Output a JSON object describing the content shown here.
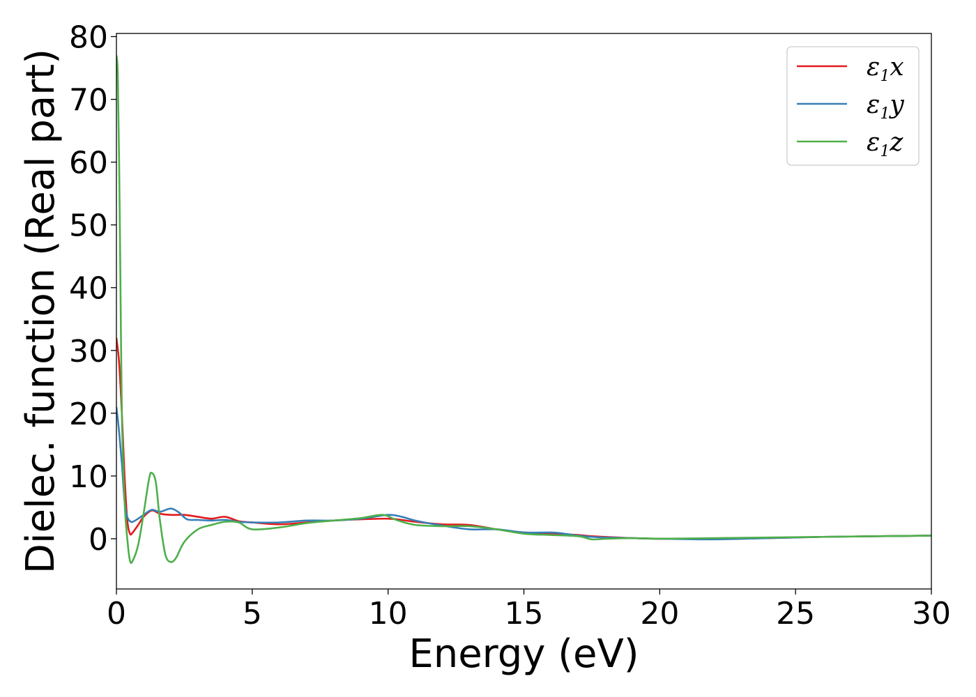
{
  "chart_data": {
    "type": "line",
    "xlabel": "Energy (eV)",
    "ylabel": "Dielec. function (Real part)",
    "xlim": [
      0,
      30
    ],
    "ylim": [
      -8,
      80.5
    ],
    "xticks": [
      "0",
      "5",
      "10",
      "15",
      "20",
      "25",
      "30"
    ],
    "yticks": [
      "0",
      "10",
      "20",
      "30",
      "40",
      "50",
      "60",
      "70",
      "80"
    ],
    "grid": false,
    "legend_position": "top-right",
    "series": [
      {
        "name": "ε1x",
        "legend": {
          "main": "ε",
          "sub": "1",
          "suffix": "x"
        },
        "color": "#e41a1c",
        "x": [
          0,
          0.1,
          0.2,
          0.3,
          0.4,
          0.5,
          0.6,
          0.8,
          1.0,
          1.3,
          1.6,
          2.0,
          2.5,
          3.0,
          3.5,
          4.0,
          4.5,
          5.0,
          6.0,
          7.0,
          8.0,
          9.0,
          10.0,
          10.5,
          11.0,
          12.0,
          13.0,
          14.0,
          15.0,
          16.0,
          17.0,
          17.5,
          18.0,
          19.0,
          20.0,
          22.0,
          24.0,
          26.0,
          28.0,
          30.0
        ],
        "y": [
          32,
          28,
          20,
          10,
          3,
          0.8,
          1.0,
          2.2,
          3.5,
          4.5,
          4.0,
          3.8,
          3.8,
          3.5,
          3.2,
          3.5,
          2.8,
          2.6,
          2.3,
          2.6,
          2.9,
          3.1,
          3.2,
          3.0,
          2.7,
          2.3,
          2.2,
          1.5,
          1.0,
          0.8,
          0.6,
          0.4,
          0.3,
          0.1,
          0,
          0,
          0.1,
          0.3,
          0.4,
          0.5
        ]
      },
      {
        "name": "ε1y",
        "legend": {
          "main": "ε",
          "sub": "1",
          "suffix": "y"
        },
        "color": "#377eb8",
        "x": [
          0,
          0.1,
          0.2,
          0.3,
          0.4,
          0.5,
          0.6,
          0.8,
          1.0,
          1.3,
          1.6,
          2.0,
          2.3,
          2.6,
          3.0,
          3.5,
          4.0,
          4.5,
          5.0,
          6.0,
          7.0,
          8.0,
          9.0,
          10.0,
          10.5,
          11.0,
          12.0,
          13.0,
          14.0,
          15.0,
          16.0,
          16.5,
          17.0,
          17.5,
          18.0,
          19.0,
          20.0,
          22.0,
          24.0,
          26.0,
          28.0,
          30.0
        ],
        "y": [
          21,
          17,
          12,
          6,
          3.5,
          2.8,
          2.7,
          3.2,
          3.8,
          4.6,
          4.3,
          4.8,
          4.2,
          3.1,
          3.0,
          2.9,
          3.0,
          2.7,
          2.6,
          2.6,
          2.9,
          2.9,
          3.2,
          3.8,
          3.5,
          2.9,
          2.1,
          1.5,
          1.5,
          1.0,
          1.0,
          0.8,
          0.5,
          0.3,
          0.2,
          0.1,
          0,
          -0.1,
          0.1,
          0.3,
          0.4,
          0.5
        ]
      },
      {
        "name": "ε1z",
        "legend": {
          "main": "ε",
          "sub": "1",
          "suffix": "z"
        },
        "color": "#4daf4a",
        "x": [
          0,
          0.05,
          0.1,
          0.15,
          0.2,
          0.3,
          0.4,
          0.5,
          0.6,
          0.8,
          1.0,
          1.2,
          1.3,
          1.45,
          1.6,
          1.8,
          2.0,
          2.2,
          2.5,
          3.0,
          3.5,
          4.0,
          4.5,
          5.0,
          6.0,
          7.0,
          8.0,
          9.0,
          9.8,
          10.3,
          11.0,
          12.0,
          13.0,
          14.0,
          15.0,
          16.0,
          17.0,
          17.5,
          18.0,
          19.0,
          20.0,
          22.0,
          24.0,
          26.0,
          28.0,
          30.0
        ],
        "y": [
          77,
          74,
          60,
          40,
          20,
          6,
          0,
          -3.5,
          -3.5,
          -1,
          4,
          9.5,
          10.5,
          9,
          3,
          -2.5,
          -3.7,
          -3,
          -0.5,
          1.5,
          2.2,
          2.7,
          2.6,
          1.5,
          1.8,
          2.5,
          2.9,
          3.3,
          3.8,
          3.0,
          2.2,
          2.0,
          2.0,
          1.5,
          0.8,
          0.6,
          0.4,
          -0.1,
          0,
          0.1,
          0,
          0.1,
          0.2,
          0.3,
          0.4,
          0.5
        ]
      }
    ]
  }
}
